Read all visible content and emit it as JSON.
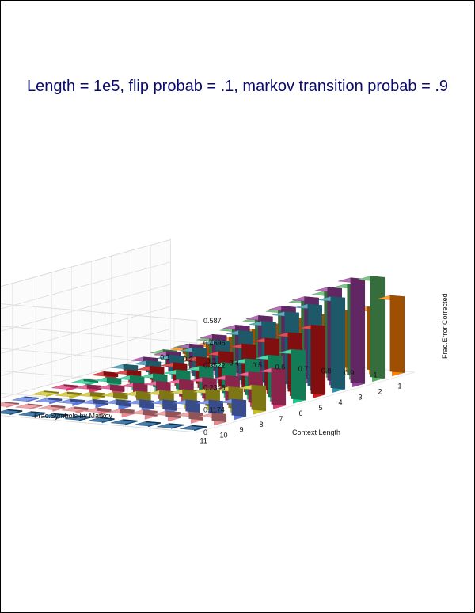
{
  "chart_data": {
    "type": "bar",
    "title": "Length = 1e5, flip probab = .1, markov transition probab = .9",
    "xlabel": "Context Length",
    "ylabel": "Frac.Symbols by Markov",
    "zlabel": "Frac.Error Corrected",
    "x_ticks": [
      "1",
      "2",
      "3",
      "4",
      "5",
      "6",
      "7",
      "8",
      "9",
      "10",
      "11"
    ],
    "y_ticks": [
      "0.1",
      "0.2",
      "0.3",
      "0.4",
      "0.5",
      "0.6",
      "0.7",
      "0.8",
      "0.9",
      "1"
    ],
    "z_ticks": [
      "0",
      "0.1174",
      "0.2348",
      "0.3522",
      "0.4696",
      "0.587"
    ],
    "zlim": [
      0,
      0.587
    ],
    "grid": true,
    "series": [
      {
        "x": "1",
        "color": "#ff8000",
        "values": [
          0.04,
          0.07,
          0.11,
          0.16,
          0.2,
          0.24,
          0.27,
          0.3,
          0.33,
          0.4
        ]
      },
      {
        "x": "2",
        "color": "#55b060",
        "values": [
          0.05,
          0.09,
          0.14,
          0.2,
          0.26,
          0.32,
          0.38,
          0.43,
          0.48,
          0.53
        ]
      },
      {
        "x": "3",
        "color": "#9b3f9e",
        "values": [
          0.04,
          0.08,
          0.13,
          0.19,
          0.25,
          0.31,
          0.37,
          0.43,
          0.49,
          0.55
        ]
      },
      {
        "x": "4",
        "color": "#2e8fa8",
        "values": [
          0.03,
          0.06,
          0.1,
          0.15,
          0.2,
          0.26,
          0.32,
          0.38,
          0.43,
          0.48
        ]
      },
      {
        "x": "5",
        "color": "#d01818",
        "values": [
          0.02,
          0.04,
          0.07,
          0.1,
          0.14,
          0.18,
          0.23,
          0.27,
          0.31,
          0.36
        ]
      },
      {
        "x": "6",
        "color": "#1ec88a",
        "values": [
          0.01,
          0.03,
          0.05,
          0.07,
          0.1,
          0.13,
          0.16,
          0.19,
          0.22,
          0.26
        ]
      },
      {
        "x": "7",
        "color": "#e03a78",
        "values": [
          0.01,
          0.02,
          0.03,
          0.05,
          0.07,
          0.09,
          0.11,
          0.13,
          0.16,
          0.19
        ]
      },
      {
        "x": "8",
        "color": "#c8c020",
        "values": [
          0.005,
          0.01,
          0.02,
          0.03,
          0.045,
          0.06,
          0.075,
          0.09,
          0.11,
          0.13
        ]
      },
      {
        "x": "9",
        "color": "#5a7ae0",
        "values": [
          0.004,
          0.008,
          0.012,
          0.02,
          0.03,
          0.04,
          0.05,
          0.06,
          0.07,
          0.085
        ]
      },
      {
        "x": "10",
        "color": "#e8898e",
        "values": [
          0.003,
          0.005,
          0.008,
          0.01,
          0.015,
          0.02,
          0.025,
          0.03,
          0.035,
          0.04
        ]
      },
      {
        "x": "11",
        "color": "#0b4f88",
        "values": [
          0,
          0,
          0,
          0,
          0,
          0,
          0,
          0,
          0,
          0
        ]
      }
    ]
  }
}
